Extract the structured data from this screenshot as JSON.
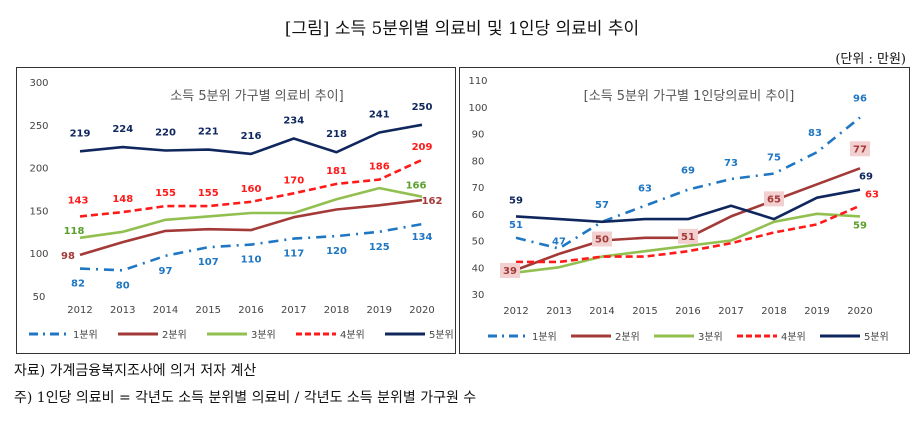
{
  "figure": {
    "title": "[그림] 소득 5분위별 의료비 및 1인당 의료비 추이",
    "unit": "(단위 : 만원)"
  },
  "notes": {
    "source": "자료) 가계금융복지조사에 의거 저자 계산",
    "note": "주) 1인당 의료비 = 각년도 소득 분위별 의료비 / 각년도 소득 분위별 가구원 수"
  },
  "chart_data": [
    {
      "type": "line",
      "title": "소득 5분위 가구별 의료비 추이]",
      "x": [
        "2012",
        "2013",
        "2014",
        "2015",
        "2016",
        "2017",
        "2018",
        "2019",
        "2020"
      ],
      "ylim": [
        50,
        300
      ],
      "yticks": [
        50,
        100,
        150,
        200,
        250,
        300
      ],
      "grid": false,
      "legend": "bottom",
      "series": [
        {
          "name": "1분위",
          "color": "#1f77c4",
          "style": "dashdot",
          "values": [
            82,
            80,
            97,
            107,
            110,
            117,
            120,
            125,
            134
          ],
          "labels": [
            "82",
            "80",
            "97",
            "107",
            "110",
            "117",
            "120",
            "125",
            "134"
          ],
          "label_color": "#1f77c4"
        },
        {
          "name": "2분위",
          "color": "#a33a38",
          "style": "solid",
          "values": [
            98,
            113,
            126,
            128,
            127,
            142,
            151,
            156,
            162
          ],
          "labels": [
            "98",
            "",
            "",
            "",
            "",
            "",
            "",
            "",
            "162"
          ],
          "label_color": "#a33a38"
        },
        {
          "name": "3분위",
          "color": "#92c050",
          "style": "solid",
          "values": [
            118,
            125,
            139,
            143,
            147,
            147,
            163,
            176,
            166
          ],
          "labels": [
            "118",
            "",
            "",
            "",
            "",
            "",
            "",
            "",
            "166"
          ],
          "label_color": "#5aa02c"
        },
        {
          "name": "4분위",
          "color": "#ff1a1a",
          "style": "dash",
          "values": [
            143,
            148,
            155,
            155,
            160,
            170,
            181,
            186,
            209
          ],
          "labels": [
            "143",
            "148",
            "155",
            "155",
            "160",
            "170",
            "181",
            "186",
            "209"
          ],
          "label_color": "#ff1a1a"
        },
        {
          "name": "5분위",
          "color": "#10275e",
          "style": "solid",
          "values": [
            219,
            224,
            220,
            221,
            216,
            234,
            218,
            241,
            250
          ],
          "labels": [
            "219",
            "224",
            "220",
            "221",
            "216",
            "234",
            "218",
            "241",
            "250"
          ],
          "label_color": "#10275e"
        }
      ]
    },
    {
      "type": "line",
      "title": "[소득 5분위 가구별 1인당의료비 추이]",
      "x": [
        "2012",
        "2013",
        "2014",
        "2015",
        "2016",
        "2017",
        "2018",
        "2019",
        "2020"
      ],
      "ylim": [
        30,
        110
      ],
      "yticks": [
        30,
        40,
        50,
        60,
        70,
        80,
        90,
        100,
        110
      ],
      "grid": false,
      "legend": "bottom",
      "series": [
        {
          "name": "1분위",
          "color": "#1f77c4",
          "style": "dashdot",
          "values": [
            51,
            47,
            57,
            63,
            69,
            73,
            75,
            83,
            96
          ],
          "labels": [
            "51",
            "47",
            "57",
            "63",
            "69",
            "73",
            "75",
            "83",
            "96"
          ],
          "label_color": "#1f77c4"
        },
        {
          "name": "2분위",
          "color": "#a33a38",
          "style": "solid",
          "values": [
            39,
            45,
            50,
            51,
            51,
            59,
            65,
            71,
            77
          ],
          "labels": [
            "39",
            "",
            "50",
            "",
            "51",
            "",
            "65",
            "",
            "77"
          ],
          "label_color": "#a33a38",
          "label_box": "#f2d0cf"
        },
        {
          "name": "3분위",
          "color": "#92c050",
          "style": "solid",
          "values": [
            38,
            40,
            44,
            46,
            48,
            50,
            57,
            60,
            59
          ],
          "labels": [
            "",
            "",
            "",
            "",
            "",
            "",
            "",
            "",
            "59"
          ],
          "label_color": "#5aa02c"
        },
        {
          "name": "4분위",
          "color": "#ff1a1a",
          "style": "dash",
          "values": [
            42,
            42,
            44,
            44,
            46,
            49,
            53,
            56,
            63
          ],
          "labels": [
            "",
            "",
            "",
            "",
            "",
            "",
            "",
            "",
            "63"
          ],
          "label_color": "#ff1a1a"
        },
        {
          "name": "5분위",
          "color": "#10275e",
          "style": "solid",
          "values": [
            59,
            58,
            57,
            58,
            58,
            63,
            58,
            66,
            69
          ],
          "labels": [
            "59",
            "",
            "",
            "",
            "",
            "",
            "",
            "",
            "69"
          ],
          "label_color": "#10275e"
        }
      ]
    }
  ]
}
